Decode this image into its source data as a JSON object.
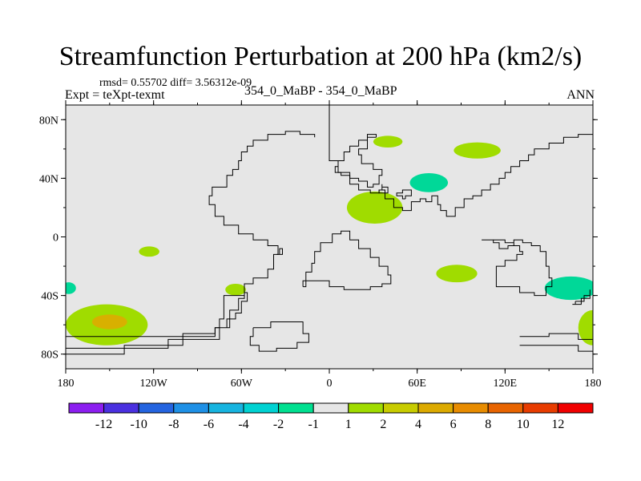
{
  "title": "Streamfunction Perturbation at 200 hPa (km2/s)",
  "stats": "rmsd= 0.55702 diff= 3.56312e-09",
  "experiment": "Expt = teXpt-texmt",
  "case": "354_0_MaBP - 354_0_MaBP",
  "season": "ANN",
  "map": {
    "lon_range": [
      -180,
      180
    ],
    "lat_range": [
      -90,
      90
    ],
    "background_color": "#e6e6e6",
    "x_ticks": [
      {
        "lon": -180,
        "label": "180"
      },
      {
        "lon": -120,
        "label": "120W"
      },
      {
        "lon": -60,
        "label": "60W"
      },
      {
        "lon": 0,
        "label": "0"
      },
      {
        "lon": 60,
        "label": "60E"
      },
      {
        "lon": 120,
        "label": "120E"
      },
      {
        "lon": 180,
        "label": "180"
      }
    ],
    "y_ticks": [
      {
        "lat": 80,
        "label": "80N"
      },
      {
        "lat": 40,
        "label": "40N"
      },
      {
        "lat": 0,
        "label": "0"
      },
      {
        "lat": -40,
        "label": "40S"
      },
      {
        "lat": -80,
        "label": "80S"
      }
    ],
    "anomalies": [
      {
        "lon": 40,
        "lat": 65,
        "rlon": 10,
        "rlat": 4,
        "color": "#a0dc00"
      },
      {
        "lon": 101,
        "lat": 59,
        "rlon": 16,
        "rlat": 5.5,
        "color": "#a0dc00"
      },
      {
        "lon": 68,
        "lat": 37,
        "rlon": 13,
        "rlat": 6.5,
        "color": "#00d898"
      },
      {
        "lon": 31,
        "lat": 20,
        "rlon": 19,
        "rlat": 11,
        "color": "#a0dc00"
      },
      {
        "lon": -123,
        "lat": -10,
        "rlon": 7,
        "rlat": 3.5,
        "color": "#a0dc00"
      },
      {
        "lon": 87,
        "lat": -25,
        "rlon": 14,
        "rlat": 6,
        "color": "#a0dc00"
      },
      {
        "lon": -64,
        "lat": -36,
        "rlon": 7,
        "rlat": 4,
        "color": "#a0dc00"
      },
      {
        "lon": -178,
        "lat": -35,
        "rlon": 5,
        "rlat": 4,
        "color": "#00d898"
      },
      {
        "lon": 165,
        "lat": -35,
        "rlon": 18,
        "rlat": 8,
        "color": "#00d898"
      },
      {
        "lon": -152,
        "lat": -60,
        "rlon": 28,
        "rlat": 14,
        "color": "#a0dc00"
      },
      {
        "lon": -150,
        "lat": -58,
        "rlon": 12,
        "rlat": 5,
        "color": "#d8b000"
      },
      {
        "lon": 180,
        "lat": -62,
        "rlon": 10,
        "rlat": 12,
        "color": "#a0dc00"
      }
    ],
    "coastlines": [
      [
        [
          -180,
          -68
        ],
        [
          -90,
          -68
        ],
        [
          -78,
          -62
        ],
        [
          -75,
          -56
        ],
        [
          -72,
          -48
        ],
        [
          -72,
          -40
        ],
        [
          -58,
          -32
        ],
        [
          -52,
          -28
        ],
        [
          -42,
          -22
        ],
        [
          -38,
          -12
        ],
        [
          -35,
          -6
        ],
        [
          -42,
          -2
        ],
        [
          -52,
          2
        ],
        [
          -62,
          8
        ],
        [
          -72,
          14
        ],
        [
          -78,
          22
        ],
        [
          -82,
          28
        ],
        [
          -80,
          34
        ],
        [
          -70,
          42
        ],
        [
          -66,
          46
        ],
        [
          -62,
          52
        ],
        [
          -60,
          58
        ],
        [
          -56,
          62
        ],
        [
          -52,
          66
        ],
        [
          -42,
          70
        ],
        [
          -30,
          72
        ],
        [
          -20,
          70
        ],
        [
          -10,
          68
        ]
      ],
      [
        [
          -180,
          -76
        ],
        [
          -140,
          -76
        ],
        [
          -110,
          -70
        ],
        [
          -90,
          -70
        ],
        [
          -75,
          -62
        ],
        [
          -68,
          -50
        ],
        [
          -62,
          -42
        ],
        [
          -58,
          -38
        ],
        [
          -56,
          -44
        ],
        [
          -60,
          -52
        ],
        [
          -64,
          -56
        ],
        [
          -70,
          -62
        ],
        [
          -78,
          -66
        ],
        [
          -100,
          -74
        ],
        [
          -140,
          -80
        ],
        [
          -180,
          -80
        ]
      ],
      [
        [
          -52,
          -62
        ],
        [
          -40,
          -58
        ],
        [
          -28,
          -58
        ],
        [
          -18,
          -66
        ],
        [
          -14,
          -72
        ],
        [
          -22,
          -76
        ],
        [
          -36,
          -78
        ],
        [
          -48,
          -74
        ],
        [
          -54,
          -68
        ],
        [
          -52,
          -62
        ]
      ],
      [
        [
          -36,
          -12
        ],
        [
          -34,
          -8
        ],
        [
          -32,
          -12
        ],
        [
          -36,
          -12
        ]
      ],
      [
        [
          0,
          90
        ],
        [
          0,
          52
        ],
        [
          6,
          44
        ],
        [
          14,
          36
        ],
        [
          20,
          32
        ],
        [
          28,
          30
        ],
        [
          34,
          32
        ],
        [
          38,
          26
        ],
        [
          44,
          20
        ],
        [
          50,
          18
        ],
        [
          56,
          24
        ],
        [
          62,
          26
        ],
        [
          66,
          24
        ],
        [
          70,
          28
        ],
        [
          74,
          22
        ],
        [
          76,
          18
        ],
        [
          80,
          14
        ],
        [
          86,
          20
        ],
        [
          92,
          26
        ],
        [
          98,
          28
        ],
        [
          104,
          32
        ],
        [
          110,
          36
        ],
        [
          116,
          40
        ],
        [
          120,
          44
        ],
        [
          124,
          48
        ],
        [
          130,
          52
        ],
        [
          136,
          56
        ],
        [
          140,
          60
        ],
        [
          150,
          64
        ],
        [
          160,
          68
        ],
        [
          170,
          70
        ],
        [
          180,
          72
        ]
      ],
      [
        [
          32,
          68
        ],
        [
          26,
          60
        ],
        [
          20,
          56
        ],
        [
          22,
          50
        ],
        [
          30,
          46
        ],
        [
          36,
          42
        ],
        [
          34,
          36
        ],
        [
          30,
          34
        ],
        [
          26,
          38
        ],
        [
          20,
          40
        ],
        [
          14,
          42
        ],
        [
          8,
          44
        ],
        [
          4,
          48
        ],
        [
          6,
          52
        ],
        [
          10,
          58
        ],
        [
          14,
          62
        ],
        [
          20,
          66
        ],
        [
          26,
          70
        ],
        [
          32,
          68
        ]
      ],
      [
        [
          36,
          36
        ],
        [
          36,
          34
        ],
        [
          40,
          32
        ],
        [
          40,
          30
        ],
        [
          36,
          30
        ],
        [
          34,
          32
        ],
        [
          36,
          36
        ]
      ],
      [
        [
          52,
          26
        ],
        [
          50,
          28
        ],
        [
          46,
          30
        ],
        [
          50,
          32
        ],
        [
          56,
          28
        ],
        [
          52,
          26
        ]
      ],
      [
        [
          104,
          -2
        ],
        [
          112,
          -4
        ],
        [
          116,
          -8
        ],
        [
          122,
          -6
        ],
        [
          126,
          -2
        ],
        [
          132,
          -4
        ],
        [
          138,
          -6
        ],
        [
          144,
          -10
        ],
        [
          148,
          -20
        ],
        [
          150,
          -28
        ],
        [
          152,
          -34
        ],
        [
          148,
          -40
        ],
        [
          140,
          -38
        ],
        [
          130,
          -34
        ],
        [
          120,
          -34
        ],
        [
          114,
          -26
        ],
        [
          114,
          -20
        ],
        [
          120,
          -16
        ],
        [
          128,
          -12
        ],
        [
          132,
          -10
        ],
        [
          130,
          -6
        ],
        [
          126,
          -4
        ],
        [
          120,
          -2
        ],
        [
          112,
          -2
        ],
        [
          104,
          -2
        ]
      ],
      [
        [
          -18,
          -34
        ],
        [
          -16,
          -24
        ],
        [
          -12,
          -18
        ],
        [
          -10,
          -10
        ],
        [
          -6,
          -4
        ],
        [
          2,
          2
        ],
        [
          8,
          4
        ],
        [
          14,
          -2
        ],
        [
          20,
          -8
        ],
        [
          28,
          -14
        ],
        [
          34,
          -20
        ],
        [
          40,
          -26
        ],
        [
          42,
          -32
        ],
        [
          36,
          -34
        ],
        [
          28,
          -36
        ],
        [
          20,
          -36
        ],
        [
          10,
          -34
        ],
        [
          0,
          -30
        ],
        [
          -8,
          -30
        ],
        [
          -18,
          -34
        ]
      ],
      [
        [
          168,
          -44
        ],
        [
          174,
          -40
        ],
        [
          178,
          -36
        ],
        [
          178,
          -42
        ],
        [
          172,
          -46
        ],
        [
          166,
          -46
        ],
        [
          168,
          -44
        ]
      ],
      [
        [
          130,
          -68
        ],
        [
          150,
          -66
        ],
        [
          170,
          -70
        ],
        [
          180,
          -70
        ]
      ],
      [
        [
          130,
          -74
        ],
        [
          150,
          -74
        ],
        [
          170,
          -78
        ],
        [
          180,
          -78
        ]
      ]
    ]
  },
  "colorbar": {
    "colors": [
      "#8c1ef0",
      "#4a30e0",
      "#2464e0",
      "#1e90e6",
      "#16b4e0",
      "#00d2d2",
      "#00e090",
      "#e6e6e6",
      "#a0dc00",
      "#c8cc00",
      "#dcaa00",
      "#e88c00",
      "#e86400",
      "#e83c00",
      "#f00000"
    ],
    "labels": [
      "-12",
      "-10",
      "-8",
      "-6",
      "-4",
      "-2",
      "-1",
      "1",
      "2",
      "4",
      "6",
      "8",
      "10",
      "12"
    ]
  }
}
